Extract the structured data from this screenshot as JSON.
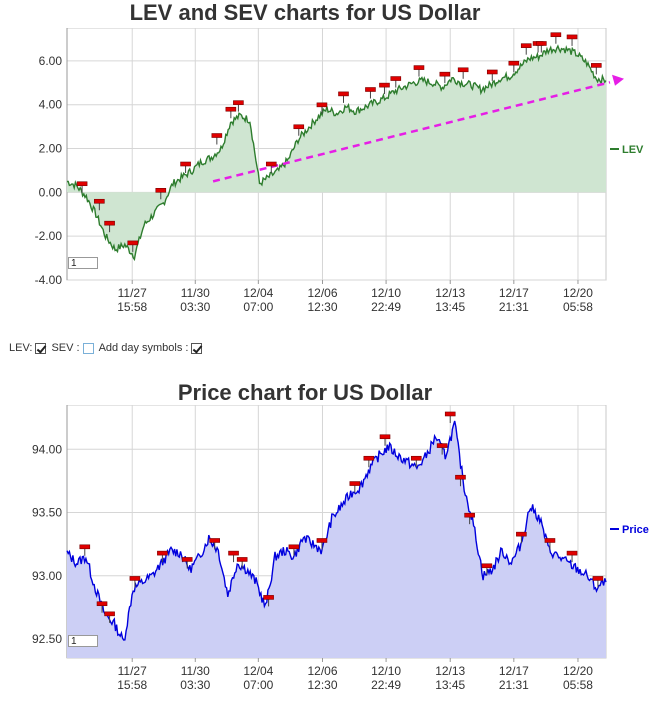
{
  "lev_chart": {
    "title": "LEV and SEV charts for US Dollar",
    "zoom_value": "1",
    "chart_data": {
      "type": "line",
      "title": "LEV and SEV charts for US Dollar",
      "series": [
        {
          "name": "LEV",
          "color": "#2e7d2e",
          "fill": "#cfe5d1",
          "values": [
            0.5,
            0.3,
            -0.2,
            -1.0,
            -2.0,
            -2.6,
            -2.4,
            -2.9,
            -1.5,
            -1.0,
            -0.5,
            0.4,
            0.7,
            1.0,
            1.4,
            1.6,
            2.0,
            3.2,
            3.5,
            3.3,
            0.4,
            0.7,
            1.0,
            1.5,
            2.4,
            2.9,
            3.4,
            3.8,
            3.6,
            3.9,
            3.7,
            3.9,
            4.1,
            4.3,
            4.6,
            4.8,
            5.0,
            5.1,
            5.0,
            4.8,
            5.2,
            5.0,
            4.9,
            4.7,
            4.9,
            5.2,
            5.3,
            5.7,
            6.1,
            6.2,
            6.5,
            6.6,
            6.5,
            6.3,
            5.9,
            5.2,
            5.1
          ]
        }
      ],
      "trendline": {
        "color": "#e61ee6",
        "from": [
          0.271,
          0.5
        ],
        "to": [
          1.0,
          5.0
        ]
      },
      "yticks": [
        "6.00",
        "4.00",
        "2.00",
        "0.00",
        "-2.00",
        "-4.00"
      ],
      "ytick_values": [
        6,
        4,
        2,
        0,
        -2,
        -4
      ],
      "ylim": [
        -4.0,
        7.5
      ],
      "xticks": [
        {
          "day": "11/27",
          "time": "15:58",
          "pos": 0.121
        },
        {
          "day": "11/30",
          "time": "03:30",
          "pos": 0.238
        },
        {
          "day": "12/04",
          "time": "07:00",
          "pos": 0.355
        },
        {
          "day": "12/06",
          "time": "12:30",
          "pos": 0.474
        },
        {
          "day": "12/10",
          "time": "22:49",
          "pos": 0.592
        },
        {
          "day": "12/13",
          "time": "13:45",
          "pos": 0.711
        },
        {
          "day": "12/17",
          "time": "21:31",
          "pos": 0.829
        },
        {
          "day": "12/20",
          "time": "05:58",
          "pos": 0.948
        }
      ],
      "markers": [
        0.028,
        0.06,
        0.079,
        0.122,
        0.174,
        0.22,
        0.278,
        0.304,
        0.318,
        0.379,
        0.43,
        0.473,
        0.513,
        0.563,
        0.589,
        0.61,
        0.653,
        0.701,
        0.735,
        0.789,
        0.829,
        0.852,
        0.874,
        0.88,
        0.907,
        0.937,
        0.982
      ],
      "legend": "top-right",
      "grid": true
    },
    "legend_label": "LEV"
  },
  "controls": {
    "lev_label": "LEV:",
    "sev_label": "SEV :",
    "day_symbols_label": "Add day symbols :"
  },
  "price_chart": {
    "title": "Price chart for US Dollar",
    "zoom_value": "1",
    "chart_data": {
      "type": "area",
      "title": "Price chart for US Dollar",
      "series": [
        {
          "name": "Price",
          "color": "#0000dd",
          "fill": "#cccff5",
          "values": [
            93.18,
            93.1,
            93.15,
            92.9,
            92.7,
            92.62,
            92.48,
            92.9,
            92.95,
            93.0,
            93.1,
            93.2,
            93.18,
            93.05,
            93.15,
            93.3,
            93.2,
            92.85,
            93.1,
            93.05,
            92.95,
            92.75,
            93.15,
            93.2,
            93.15,
            93.3,
            93.25,
            93.2,
            93.45,
            93.55,
            93.65,
            93.7,
            93.85,
            93.95,
            94.02,
            93.95,
            93.9,
            93.85,
            93.95,
            94.1,
            93.95,
            94.2,
            93.7,
            93.4,
            93.0,
            93.05,
            93.2,
            93.1,
            93.25,
            93.55,
            93.45,
            93.2,
            93.15,
            93.1,
            93.05,
            93.0,
            92.9,
            92.95
          ]
        }
      ],
      "yticks": [
        "94.00",
        "93.50",
        "93.00",
        "92.50"
      ],
      "ytick_values": [
        94,
        93.5,
        93,
        92.5
      ],
      "ylim": [
        92.35,
        94.35
      ],
      "xticks": [
        {
          "day": "11/27",
          "time": "15:58",
          "pos": 0.121
        },
        {
          "day": "11/30",
          "time": "03:30",
          "pos": 0.238
        },
        {
          "day": "12/04",
          "time": "07:00",
          "pos": 0.355
        },
        {
          "day": "12/06",
          "time": "12:30",
          "pos": 0.474
        },
        {
          "day": "12/10",
          "time": "22:49",
          "pos": 0.592
        },
        {
          "day": "12/13",
          "time": "13:45",
          "pos": 0.711
        },
        {
          "day": "12/17",
          "time": "21:31",
          "pos": 0.829
        },
        {
          "day": "12/20",
          "time": "05:58",
          "pos": 0.948
        }
      ],
      "markers": [
        0.033,
        0.065,
        0.079,
        0.126,
        0.177,
        0.223,
        0.274,
        0.309,
        0.325,
        0.374,
        0.421,
        0.473,
        0.534,
        0.56,
        0.59,
        0.648,
        0.696,
        0.711,
        0.73,
        0.747,
        0.779,
        0.843,
        0.896,
        0.937,
        0.985
      ],
      "legend": "right",
      "grid": true
    },
    "legend_label": "Price"
  }
}
